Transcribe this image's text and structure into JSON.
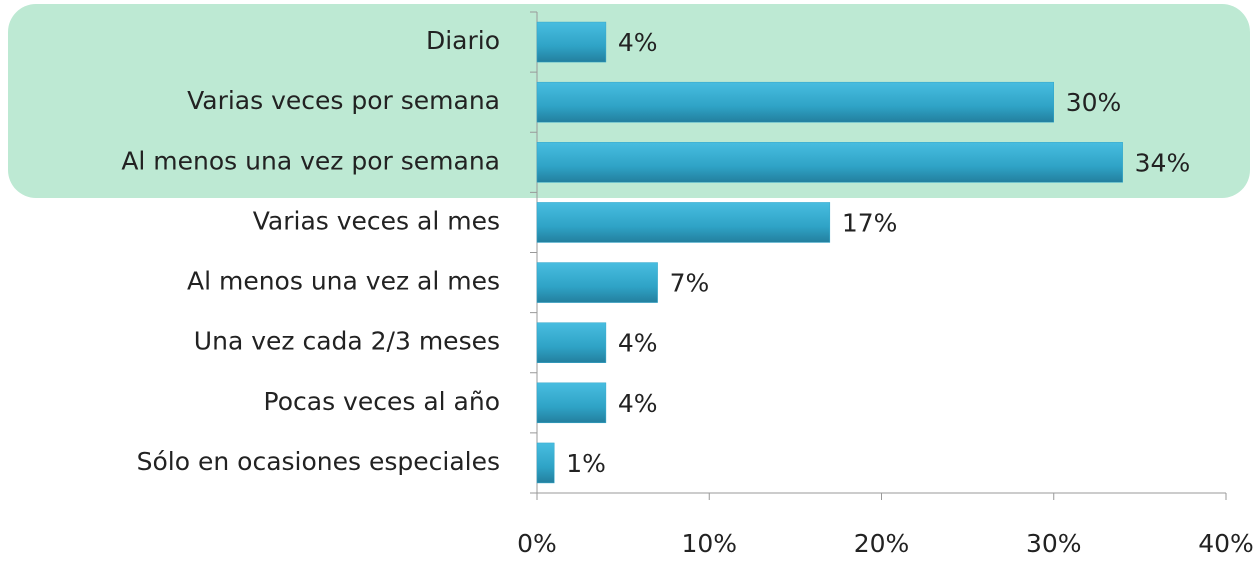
{
  "chart_data": {
    "type": "bar",
    "orientation": "horizontal",
    "categories": [
      "Diario",
      "Varias veces por semana",
      "Al menos una vez por semana",
      "Varias veces al mes",
      "Al menos una vez al mes",
      "Una vez cada 2/3 meses",
      "Pocas veces al año",
      "Sólo en ocasiones especiales"
    ],
    "values": [
      4,
      30,
      34,
      17,
      7,
      4,
      4,
      1
    ],
    "value_labels": [
      "4%",
      "30%",
      "34%",
      "17%",
      "7%",
      "4%",
      "4%",
      "1%"
    ],
    "color": "#31a6c9",
    "xlim": [
      0,
      40
    ],
    "xticks": [
      {
        "value": 0,
        "label": "0%"
      },
      {
        "value": 10,
        "label": "10%"
      },
      {
        "value": 20,
        "label": "20%"
      },
      {
        "value": 30,
        "label": "30%"
      },
      {
        "value": 40,
        "label": "40%"
      }
    ],
    "grid": false
  }
}
